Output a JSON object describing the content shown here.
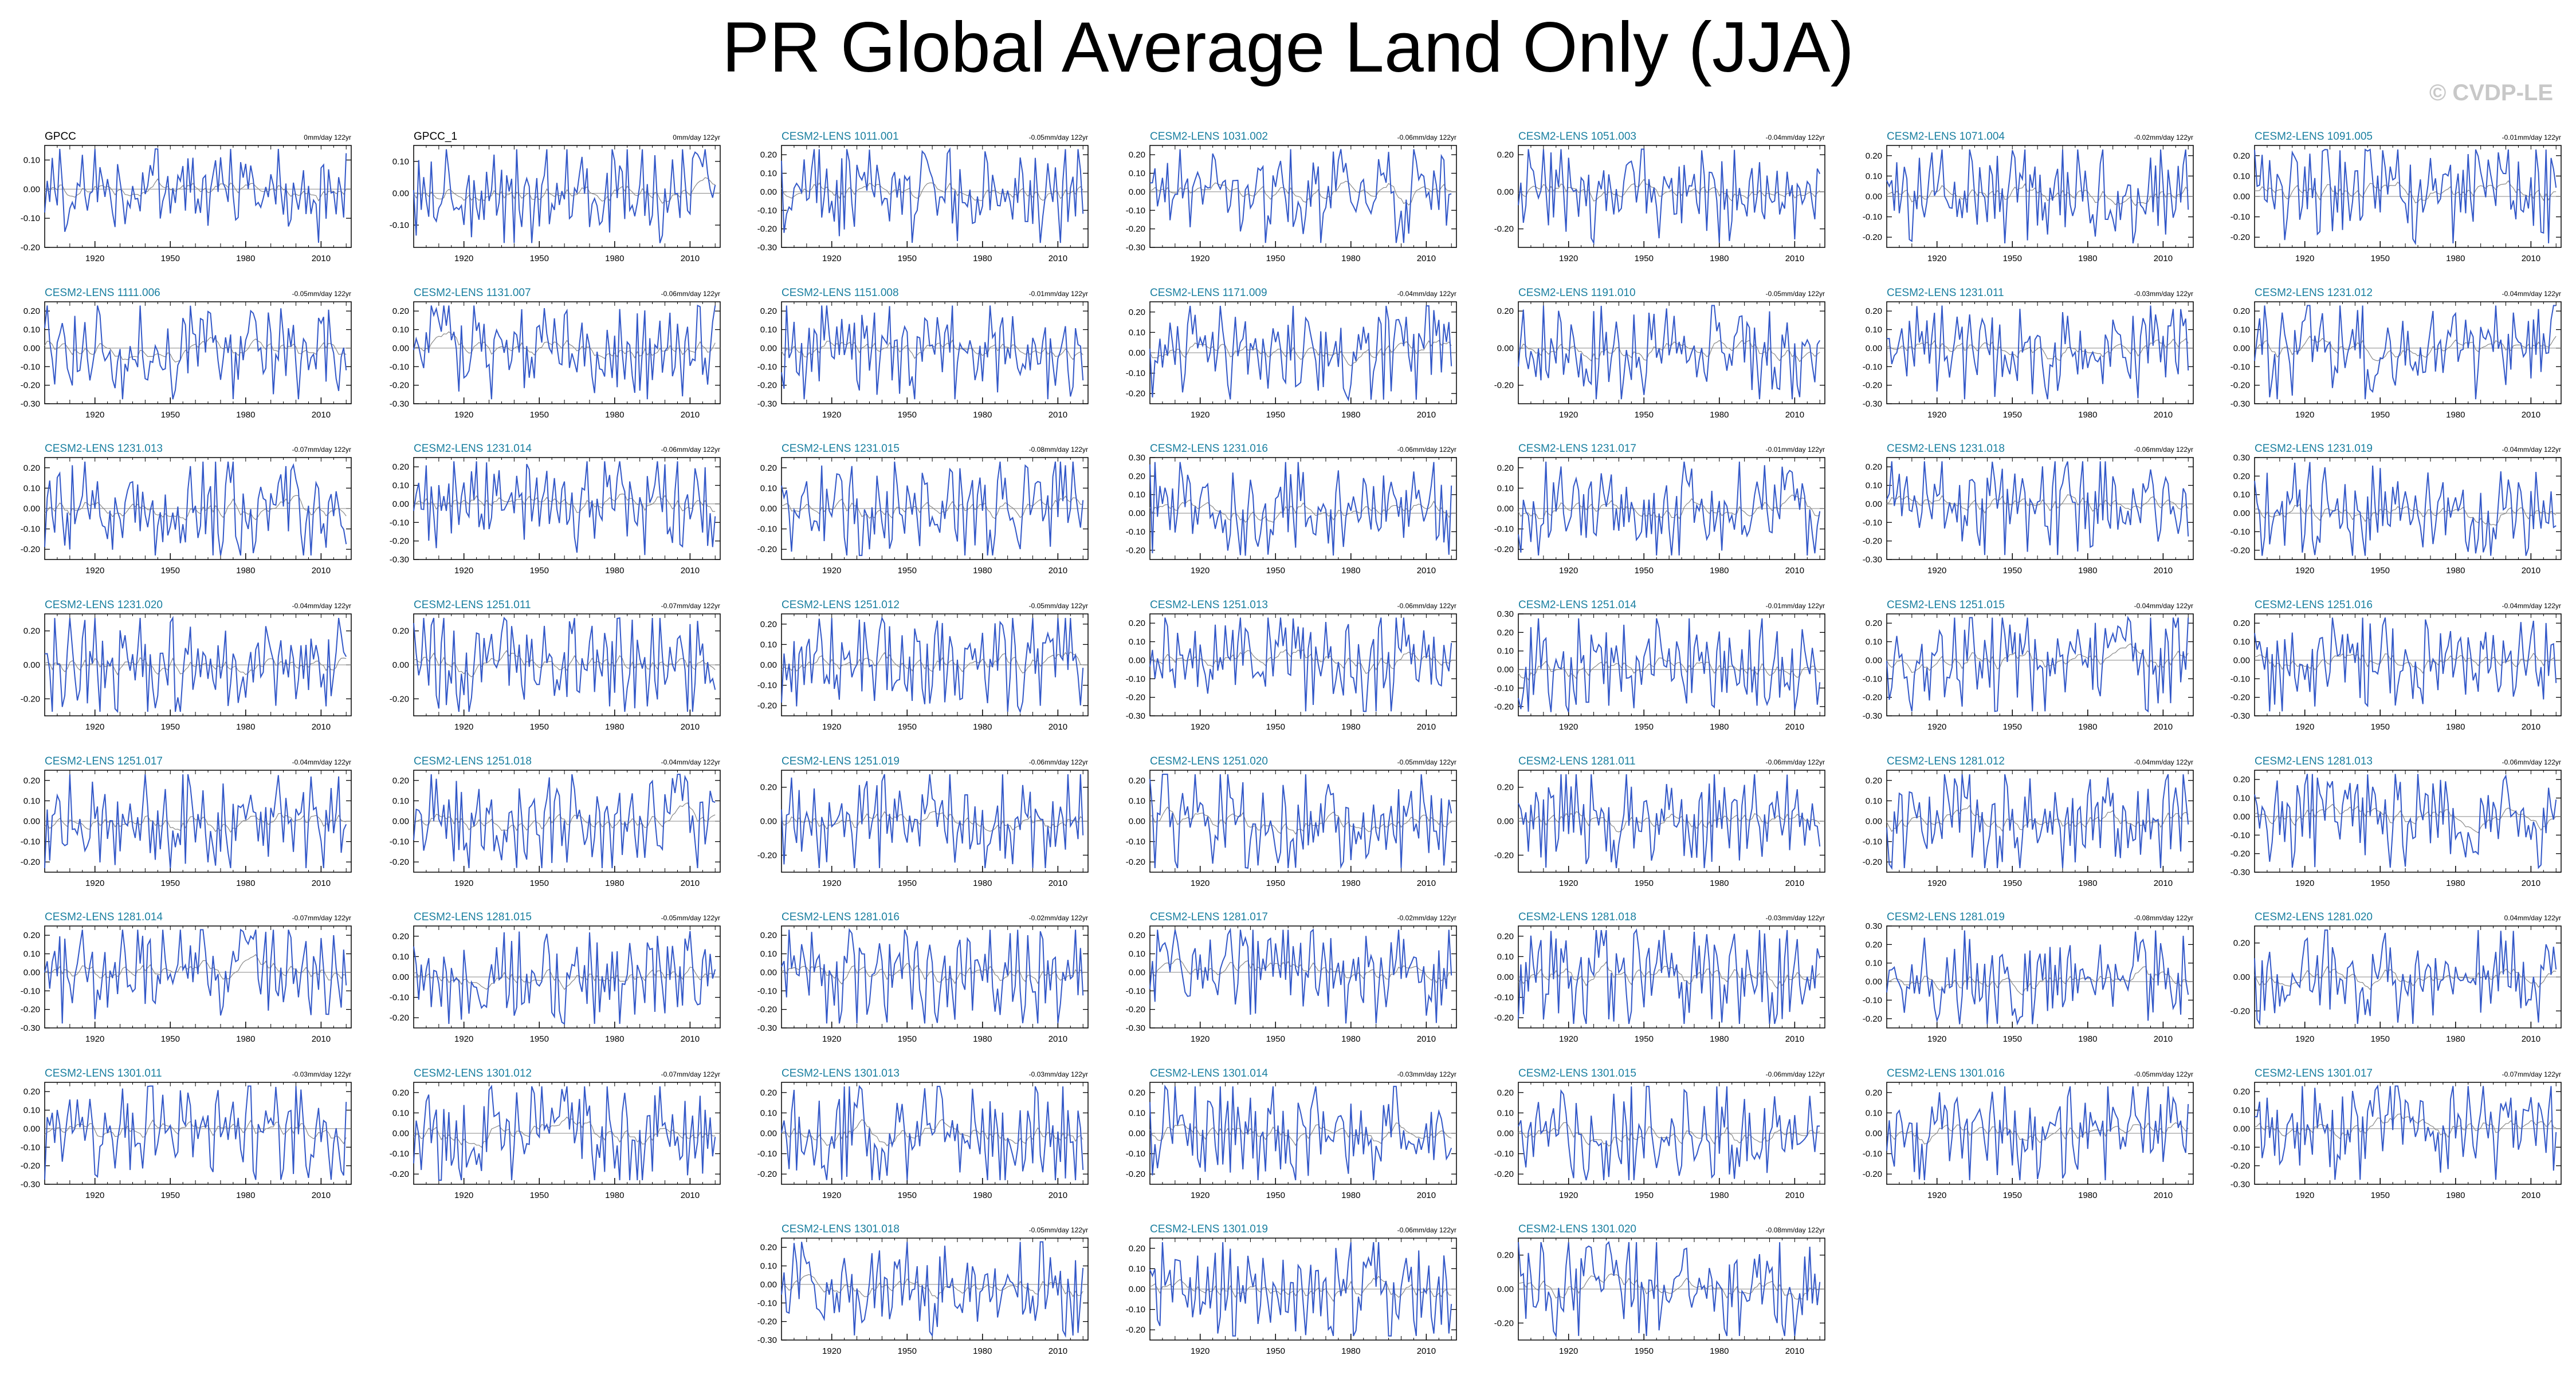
{
  "title": "PR Global Average Land Only (JJA)",
  "credit": "© CVDP-LE",
  "colors": {
    "obs_name": "#000000",
    "model_name": "#1a7fa0",
    "series_line": "#3358c8",
    "trend_line": "#888888"
  },
  "chart_data": {
    "type": "line",
    "layout": "panel-grid",
    "x_range": [
      1900,
      2022
    ],
    "x_ticks": [
      1920,
      1950,
      1980,
      2010
    ],
    "panels": [
      {
        "name": "GPCC",
        "trend": "0mm/day 122yr",
        "y_ticks": [
          "0.10",
          "0.00",
          "-0.10",
          "-0.20"
        ],
        "ylim": [
          -0.2,
          0.15
        ],
        "obs": true
      },
      {
        "name": "GPCC_1",
        "trend": "0mm/day 122yr",
        "y_ticks": [
          "0.10",
          "0.00",
          "-0.10"
        ],
        "ylim": [
          -0.17,
          0.15
        ],
        "obs": true
      },
      {
        "name": "CESM2-LENS 1011.001",
        "trend": "-0.05mm/day 122yr",
        "y_ticks": [
          "0.20",
          "0.10",
          "0.00",
          "-0.10",
          "-0.20",
          "-0.30"
        ],
        "ylim": [
          -0.3,
          0.25
        ]
      },
      {
        "name": "CESM2-LENS 1031.002",
        "trend": "-0.06mm/day 122yr",
        "y_ticks": [
          "0.20",
          "0.10",
          "0.00",
          "-0.10",
          "-0.20",
          "-0.30"
        ],
        "ylim": [
          -0.3,
          0.25
        ]
      },
      {
        "name": "CESM2-LENS 1051.003",
        "trend": "-0.04mm/day 122yr",
        "y_ticks": [
          "0.20",
          "0.00",
          "-0.20"
        ],
        "ylim": [
          -0.3,
          0.25
        ]
      },
      {
        "name": "CESM2-LENS 1071.004",
        "trend": "-0.02mm/day 122yr",
        "y_ticks": [
          "0.20",
          "0.10",
          "0.00",
          "-0.10",
          "-0.20"
        ],
        "ylim": [
          -0.25,
          0.25
        ]
      },
      {
        "name": "CESM2-LENS 1091.005",
        "trend": "-0.01mm/day 122yr",
        "y_ticks": [
          "0.20",
          "0.10",
          "0.00",
          "-0.10",
          "-0.20"
        ],
        "ylim": [
          -0.25,
          0.25
        ]
      },
      {
        "name": "CESM2-LENS 1111.006",
        "trend": "-0.05mm/day 122yr",
        "y_ticks": [
          "0.20",
          "0.10",
          "0.00",
          "-0.10",
          "-0.20",
          "-0.30"
        ],
        "ylim": [
          -0.3,
          0.25
        ]
      },
      {
        "name": "CESM2-LENS 1131.007",
        "trend": "-0.06mm/day 122yr",
        "y_ticks": [
          "0.20",
          "0.10",
          "0.00",
          "-0.10",
          "-0.20",
          "-0.30"
        ],
        "ylim": [
          -0.3,
          0.25
        ]
      },
      {
        "name": "CESM2-LENS 1151.008",
        "trend": "-0.01mm/day 122yr",
        "y_ticks": [
          "0.20",
          "0.10",
          "0.00",
          "-0.10",
          "-0.20",
          "-0.30"
        ],
        "ylim": [
          -0.3,
          0.25
        ]
      },
      {
        "name": "CESM2-LENS 1171.009",
        "trend": "-0.04mm/day 122yr",
        "y_ticks": [
          "0.20",
          "0.10",
          "0.00",
          "-0.10",
          "-0.20"
        ],
        "ylim": [
          -0.25,
          0.25
        ]
      },
      {
        "name": "CESM2-LENS 1191.010",
        "trend": "-0.05mm/day 122yr",
        "y_ticks": [
          "0.20",
          "0.00",
          "-0.20"
        ],
        "ylim": [
          -0.3,
          0.25
        ]
      },
      {
        "name": "CESM2-LENS 1231.011",
        "trend": "-0.03mm/day 122yr",
        "y_ticks": [
          "0.20",
          "0.10",
          "0.00",
          "-0.10",
          "-0.20",
          "-0.30"
        ],
        "ylim": [
          -0.3,
          0.25
        ]
      },
      {
        "name": "CESM2-LENS 1231.012",
        "trend": "-0.04mm/day 122yr",
        "y_ticks": [
          "0.20",
          "0.10",
          "0.00",
          "-0.10",
          "-0.20",
          "-0.30"
        ],
        "ylim": [
          -0.3,
          0.25
        ]
      },
      {
        "name": "CESM2-LENS 1231.013",
        "trend": "-0.07mm/day 122yr",
        "y_ticks": [
          "0.20",
          "0.10",
          "0.00",
          "-0.10",
          "-0.20"
        ],
        "ylim": [
          -0.25,
          0.25
        ]
      },
      {
        "name": "CESM2-LENS 1231.014",
        "trend": "-0.06mm/day 122yr",
        "y_ticks": [
          "0.20",
          "0.10",
          "0.00",
          "-0.10",
          "-0.20",
          "-0.30"
        ],
        "ylim": [
          -0.3,
          0.25
        ]
      },
      {
        "name": "CESM2-LENS 1231.015",
        "trend": "-0.08mm/day 122yr",
        "y_ticks": [
          "0.20",
          "0.10",
          "0.00",
          "-0.10",
          "-0.20"
        ],
        "ylim": [
          -0.25,
          0.25
        ]
      },
      {
        "name": "CESM2-LENS 1231.016",
        "trend": "-0.06mm/day 122yr",
        "y_ticks": [
          "0.30",
          "0.20",
          "0.10",
          "0.00",
          "-0.10",
          "-0.20"
        ],
        "ylim": [
          -0.25,
          0.3
        ]
      },
      {
        "name": "CESM2-LENS 1231.017",
        "trend": "-0.01mm/day 122yr",
        "y_ticks": [
          "0.20",
          "0.10",
          "0.00",
          "-0.10",
          "-0.20"
        ],
        "ylim": [
          -0.25,
          0.25
        ]
      },
      {
        "name": "CESM2-LENS 1231.018",
        "trend": "-0.06mm/day 122yr",
        "y_ticks": [
          "0.20",
          "0.10",
          "0.00",
          "-0.10",
          "-0.20",
          "-0.30"
        ],
        "ylim": [
          -0.3,
          0.25
        ]
      },
      {
        "name": "CESM2-LENS 1231.019",
        "trend": "-0.04mm/day 122yr",
        "y_ticks": [
          "0.30",
          "0.20",
          "0.10",
          "0.00",
          "-0.10",
          "-0.20"
        ],
        "ylim": [
          -0.25,
          0.3
        ]
      },
      {
        "name": "CESM2-LENS 1231.020",
        "trend": "-0.04mm/day 122yr",
        "y_ticks": [
          "0.20",
          "0.00",
          "-0.20"
        ],
        "ylim": [
          -0.3,
          0.3
        ]
      },
      {
        "name": "CESM2-LENS 1251.011",
        "trend": "-0.07mm/day 122yr",
        "y_ticks": [
          "0.20",
          "0.00",
          "-0.20"
        ],
        "ylim": [
          -0.3,
          0.3
        ]
      },
      {
        "name": "CESM2-LENS 1251.012",
        "trend": "-0.05mm/day 122yr",
        "y_ticks": [
          "0.20",
          "0.10",
          "0.00",
          "-0.10",
          "-0.20"
        ],
        "ylim": [
          -0.25,
          0.25
        ]
      },
      {
        "name": "CESM2-LENS 1251.013",
        "trend": "-0.06mm/day 122yr",
        "y_ticks": [
          "0.20",
          "0.10",
          "0.00",
          "-0.10",
          "-0.20",
          "-0.30"
        ],
        "ylim": [
          -0.3,
          0.25
        ]
      },
      {
        "name": "CESM2-LENS 1251.014",
        "trend": "-0.01mm/day 122yr",
        "y_ticks": [
          "0.30",
          "0.20",
          "0.10",
          "0.00",
          "-0.10",
          "-0.20"
        ],
        "ylim": [
          -0.25,
          0.3
        ]
      },
      {
        "name": "CESM2-LENS 1251.015",
        "trend": "-0.04mm/day 122yr",
        "y_ticks": [
          "0.20",
          "0.10",
          "0.00",
          "-0.10",
          "-0.20",
          "-0.30"
        ],
        "ylim": [
          -0.3,
          0.25
        ]
      },
      {
        "name": "CESM2-LENS 1251.016",
        "trend": "-0.04mm/day 122yr",
        "y_ticks": [
          "0.20",
          "0.10",
          "0.00",
          "-0.10",
          "-0.20",
          "-0.30"
        ],
        "ylim": [
          -0.3,
          0.25
        ]
      },
      {
        "name": "CESM2-LENS 1251.017",
        "trend": "-0.04mm/day 122yr",
        "y_ticks": [
          "0.20",
          "0.10",
          "0.00",
          "-0.10",
          "-0.20"
        ],
        "ylim": [
          -0.25,
          0.25
        ]
      },
      {
        "name": "CESM2-LENS 1251.018",
        "trend": "-0.04mm/day 122yr",
        "y_ticks": [
          "0.20",
          "0.10",
          "0.00",
          "-0.10",
          "-0.20"
        ],
        "ylim": [
          -0.25,
          0.25
        ]
      },
      {
        "name": "CESM2-LENS 1251.019",
        "trend": "-0.06mm/day 122yr",
        "y_ticks": [
          "0.20",
          "0.00",
          "-0.20"
        ],
        "ylim": [
          -0.3,
          0.3
        ]
      },
      {
        "name": "CESM2-LENS 1251.020",
        "trend": "-0.05mm/day 122yr",
        "y_ticks": [
          "0.20",
          "0.10",
          "0.00",
          "-0.10",
          "-0.20"
        ],
        "ylim": [
          -0.25,
          0.25
        ]
      },
      {
        "name": "CESM2-LENS 1281.011",
        "trend": "-0.06mm/day 122yr",
        "y_ticks": [
          "0.20",
          "0.00",
          "-0.20"
        ],
        "ylim": [
          -0.3,
          0.3
        ]
      },
      {
        "name": "CESM2-LENS 1281.012",
        "trend": "-0.04mm/day 122yr",
        "y_ticks": [
          "0.20",
          "0.10",
          "0.00",
          "-0.10",
          "-0.20"
        ],
        "ylim": [
          -0.25,
          0.25
        ]
      },
      {
        "name": "CESM2-LENS 1281.013",
        "trend": "-0.06mm/day 122yr",
        "y_ticks": [
          "0.20",
          "0.10",
          "0.00",
          "-0.10",
          "-0.20",
          "-0.30"
        ],
        "ylim": [
          -0.3,
          0.25
        ]
      },
      {
        "name": "CESM2-LENS 1281.014",
        "trend": "-0.07mm/day 122yr",
        "y_ticks": [
          "0.20",
          "0.10",
          "0.00",
          "-0.10",
          "-0.20",
          "-0.30"
        ],
        "ylim": [
          -0.3,
          0.25
        ]
      },
      {
        "name": "CESM2-LENS 1281.015",
        "trend": "-0.05mm/day 122yr",
        "y_ticks": [
          "0.20",
          "0.10",
          "0.00",
          "-0.10",
          "-0.20"
        ],
        "ylim": [
          -0.25,
          0.25
        ]
      },
      {
        "name": "CESM2-LENS 1281.016",
        "trend": "-0.02mm/day 122yr",
        "y_ticks": [
          "0.20",
          "0.10",
          "0.00",
          "-0.10",
          "-0.20",
          "-0.30"
        ],
        "ylim": [
          -0.3,
          0.25
        ]
      },
      {
        "name": "CESM2-LENS 1281.017",
        "trend": "-0.02mm/day 122yr",
        "y_ticks": [
          "0.20",
          "0.10",
          "0.00",
          "-0.10",
          "-0.20",
          "-0.30"
        ],
        "ylim": [
          -0.3,
          0.25
        ]
      },
      {
        "name": "CESM2-LENS 1281.018",
        "trend": "-0.03mm/day 122yr",
        "y_ticks": [
          "0.20",
          "0.10",
          "0.00",
          "-0.10",
          "-0.20"
        ],
        "ylim": [
          -0.25,
          0.25
        ]
      },
      {
        "name": "CESM2-LENS 1281.019",
        "trend": "-0.08mm/day 122yr",
        "y_ticks": [
          "0.30",
          "0.20",
          "0.10",
          "0.00",
          "-0.10",
          "-0.20"
        ],
        "ylim": [
          -0.25,
          0.3
        ]
      },
      {
        "name": "CESM2-LENS 1281.020",
        "trend": "0.04mm/day 122yr",
        "y_ticks": [
          "0.20",
          "0.00",
          "-0.20"
        ],
        "ylim": [
          -0.3,
          0.3
        ]
      },
      {
        "name": "CESM2-LENS 1301.011",
        "trend": "-0.03mm/day 122yr",
        "y_ticks": [
          "0.20",
          "0.10",
          "0.00",
          "-0.10",
          "-0.20",
          "-0.30"
        ],
        "ylim": [
          -0.3,
          0.25
        ]
      },
      {
        "name": "CESM2-LENS 1301.012",
        "trend": "-0.07mm/day 122yr",
        "y_ticks": [
          "0.20",
          "0.10",
          "0.00",
          "-0.10",
          "-0.20"
        ],
        "ylim": [
          -0.25,
          0.25
        ]
      },
      {
        "name": "CESM2-LENS 1301.013",
        "trend": "-0.03mm/day 122yr",
        "y_ticks": [
          "0.20",
          "0.10",
          "0.00",
          "-0.10",
          "-0.20"
        ],
        "ylim": [
          -0.25,
          0.25
        ]
      },
      {
        "name": "CESM2-LENS 1301.014",
        "trend": "-0.03mm/day 122yr",
        "y_ticks": [
          "0.20",
          "0.10",
          "0.00",
          "-0.10",
          "-0.20"
        ],
        "ylim": [
          -0.25,
          0.25
        ]
      },
      {
        "name": "CESM2-LENS 1301.015",
        "trend": "-0.06mm/day 122yr",
        "y_ticks": [
          "0.20",
          "0.10",
          "0.00",
          "-0.10",
          "-0.20"
        ],
        "ylim": [
          -0.25,
          0.25
        ]
      },
      {
        "name": "CESM2-LENS 1301.016",
        "trend": "-0.05mm/day 122yr",
        "y_ticks": [
          "0.20",
          "0.10",
          "0.00",
          "-0.10",
          "-0.20"
        ],
        "ylim": [
          -0.25,
          0.25
        ]
      },
      {
        "name": "CESM2-LENS 1301.017",
        "trend": "-0.07mm/day 122yr",
        "y_ticks": [
          "0.20",
          "0.10",
          "0.00",
          "-0.10",
          "-0.20",
          "-0.30"
        ],
        "ylim": [
          -0.3,
          0.25
        ]
      },
      {
        "name": "CESM2-LENS 1301.018",
        "trend": "-0.05mm/day 122yr",
        "y_ticks": [
          "0.20",
          "0.10",
          "0.00",
          "-0.10",
          "-0.20",
          "-0.30"
        ],
        "ylim": [
          -0.3,
          0.25
        ]
      },
      {
        "name": "CESM2-LENS 1301.019",
        "trend": "-0.06mm/day 122yr",
        "y_ticks": [
          "0.20",
          "0.10",
          "0.00",
          "-0.10",
          "-0.20"
        ],
        "ylim": [
          -0.25,
          0.25
        ]
      },
      {
        "name": "CESM2-LENS 1301.020",
        "trend": "-0.08mm/day 122yr",
        "y_ticks": [
          "0.20",
          "0.00",
          "-0.20"
        ],
        "ylim": [
          -0.3,
          0.3
        ]
      }
    ]
  }
}
